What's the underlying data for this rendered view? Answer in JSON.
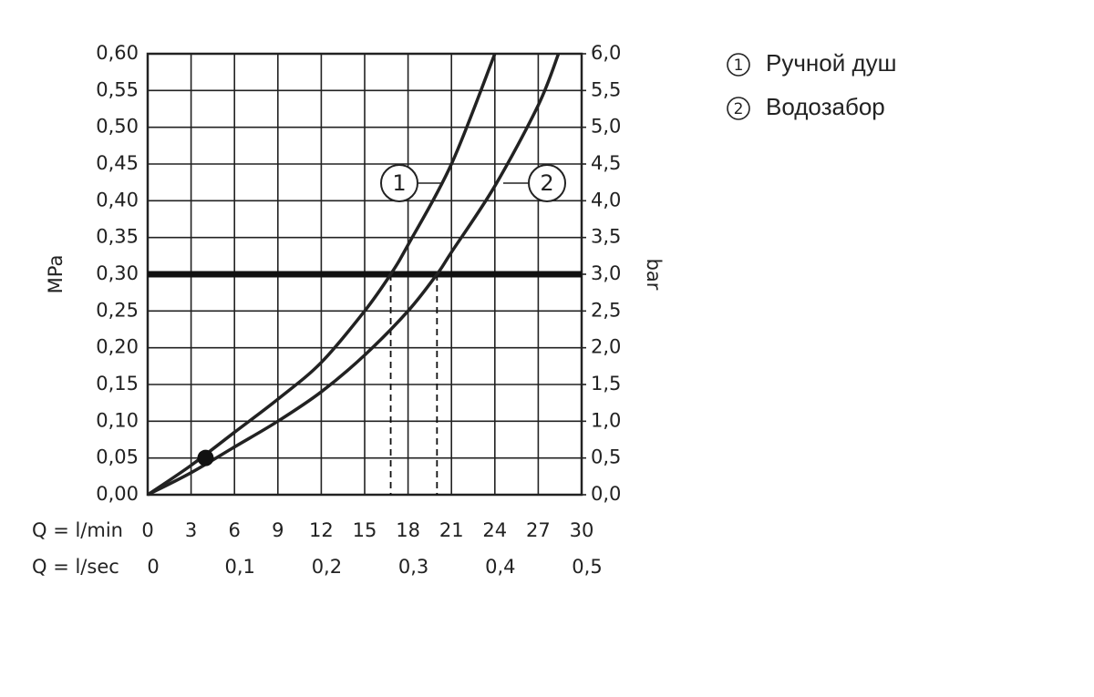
{
  "chart_data": {
    "type": "line",
    "y_label": "MPa",
    "y2_label": "bar",
    "x_label": "Q = l/min",
    "x2_label": "Q = l/sec",
    "xlim": [
      0,
      30
    ],
    "xticks": [
      0,
      3,
      6,
      9,
      12,
      15,
      18,
      21,
      24,
      27,
      30
    ],
    "x2lim": [
      0,
      0.5
    ],
    "x2ticks": [
      0,
      {
        "value": 0.1,
        "label": "0,1"
      },
      {
        "value": 0.2,
        "label": "0,2"
      },
      {
        "value": 0.3,
        "label": "0,3"
      },
      {
        "value": 0.4,
        "label": "0,4"
      },
      {
        "value": 0.5,
        "label": "0,5"
      }
    ],
    "ylim": [
      0,
      0.6
    ],
    "yticks": [
      {
        "value": 0,
        "label": "0,00"
      },
      {
        "value": 0.05,
        "label": "0,05"
      },
      {
        "value": 0.1,
        "label": "0,10"
      },
      {
        "value": 0.15,
        "label": "0,15"
      },
      {
        "value": 0.2,
        "label": "0,20"
      },
      {
        "value": 0.25,
        "label": "0,25"
      },
      {
        "value": 0.3,
        "label": "0,30"
      },
      {
        "value": 0.35,
        "label": "0,35"
      },
      {
        "value": 0.4,
        "label": "0,40"
      },
      {
        "value": 0.45,
        "label": "0,45"
      },
      {
        "value": 0.5,
        "label": "0,50"
      },
      {
        "value": 0.55,
        "label": "0,55"
      },
      {
        "value": 0.6,
        "label": "0,60"
      }
    ],
    "y2lim": [
      0,
      6
    ],
    "y2ticks": [
      {
        "value": 0,
        "label": "0,0"
      },
      {
        "value": 0.5,
        "label": "0,5"
      },
      {
        "value": 1,
        "label": "1,0"
      },
      {
        "value": 1.5,
        "label": "1,5"
      },
      {
        "value": 2,
        "label": "2,0"
      },
      {
        "value": 2.5,
        "label": "2,5"
      },
      {
        "value": 3,
        "label": "3,0"
      },
      {
        "value": 3.5,
        "label": "3,5"
      },
      {
        "value": 4,
        "label": "4,0"
      },
      {
        "value": 4.5,
        "label": "4,5"
      },
      {
        "value": 5,
        "label": "5,0"
      },
      {
        "value": 5.5,
        "label": "5,5"
      },
      {
        "value": 6,
        "label": "6,0"
      }
    ],
    "grid": true,
    "color": "#222222",
    "reference_line": 0.3,
    "drop_lines": [
      {
        "x": 16.8,
        "y": 0.3
      },
      {
        "x": 20,
        "y": 0.3
      }
    ],
    "marker": {
      "x": 4,
      "y": 0.05
    },
    "series": [
      {
        "name": "Ручной душ",
        "label": "1",
        "x": [
          0,
          3,
          6,
          9,
          12,
          15,
          16.8,
          18,
          21,
          24
        ],
        "values": [
          0,
          0.04,
          0.085,
          0.13,
          0.18,
          0.25,
          0.3,
          0.34,
          0.45,
          0.6
        ]
      },
      {
        "name": "Водозабор",
        "label": "2",
        "x": [
          0,
          3,
          6,
          9,
          12,
          15,
          18,
          20,
          21,
          24,
          27,
          28.4
        ],
        "values": [
          0,
          0.03,
          0.065,
          0.1,
          0.14,
          0.19,
          0.25,
          0.3,
          0.33,
          0.42,
          0.53,
          0.6
        ]
      }
    ]
  }
}
